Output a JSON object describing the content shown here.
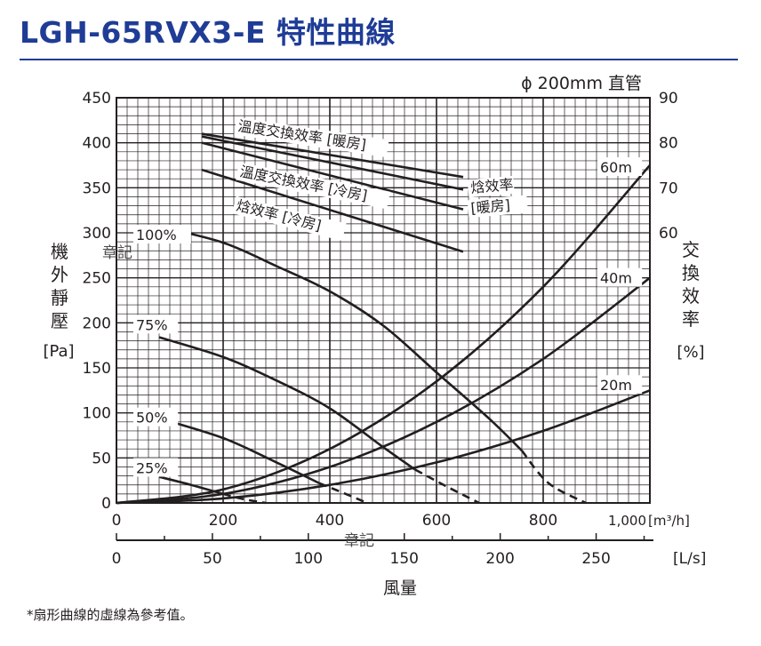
{
  "page": {
    "title": "LGH-65RVX3-E 特性曲線",
    "footnote": "*扇形曲線的虛線為參考值。"
  },
  "chart_data": {
    "type": "line",
    "duct_label": "ϕ 200mm 直管",
    "y_left": {
      "label_chars": [
        "機",
        "外",
        "靜",
        "壓"
      ],
      "unit": "[Pa]",
      "range": [
        0,
        450
      ],
      "ticks": [
        "0",
        "50",
        "100",
        "150",
        "200",
        "250",
        "300",
        "350",
        "400",
        "450"
      ]
    },
    "y_right": {
      "label_chars": [
        "交",
        "換",
        "效",
        "率"
      ],
      "unit": "[%]",
      "range": [
        0,
        90
      ],
      "ticks": [
        "60",
        "70",
        "80",
        "90"
      ]
    },
    "x_primary": {
      "unit": "[m³/h]",
      "range": [
        0,
        1000
      ],
      "ticks": [
        "0",
        "200",
        "400",
        "600",
        "800",
        "1,000"
      ]
    },
    "x_secondary": {
      "unit": "[L/s]",
      "range": [
        0,
        278
      ],
      "ticks": [
        "0",
        "50",
        "100",
        "150",
        "200",
        "250"
      ]
    },
    "x_title": "風量",
    "watermarks": [
      "章記",
      "章記"
    ],
    "grid": true,
    "fan_curves": [
      {
        "name": "100%",
        "solid": [
          [
            80,
            307
          ],
          [
            200,
            289
          ],
          [
            300,
            263
          ],
          [
            400,
            235
          ],
          [
            500,
            197
          ],
          [
            600,
            145
          ],
          [
            700,
            93
          ],
          [
            760,
            58
          ]
        ],
        "dashed": [
          [
            760,
            58
          ],
          [
            810,
            22
          ],
          [
            880,
            0
          ]
        ]
      },
      {
        "name": "75%",
        "solid": [
          [
            80,
            184
          ],
          [
            200,
            162
          ],
          [
            300,
            136
          ],
          [
            400,
            105
          ],
          [
            500,
            62
          ],
          [
            560,
            37
          ]
        ],
        "dashed": [
          [
            560,
            37
          ],
          [
            620,
            18
          ],
          [
            680,
            0
          ]
        ]
      },
      {
        "name": "50%",
        "solid": [
          [
            80,
            94
          ],
          [
            200,
            72
          ],
          [
            300,
            45
          ],
          [
            380,
            22
          ]
        ],
        "dashed": [
          [
            380,
            22
          ],
          [
            430,
            10
          ],
          [
            470,
            0
          ]
        ]
      },
      {
        "name": "25%",
        "solid": [
          [
            80,
            29
          ],
          [
            140,
            20
          ],
          [
            200,
            10
          ]
        ],
        "dashed": [
          [
            200,
            10
          ],
          [
            240,
            4
          ],
          [
            280,
            0
          ]
        ]
      }
    ],
    "duct_curves": [
      {
        "name": "60m",
        "points": [
          [
            0,
            0
          ],
          [
            200,
            15
          ],
          [
            400,
            60
          ],
          [
            600,
            135
          ],
          [
            800,
            240
          ],
          [
            1000,
            375
          ]
        ]
      },
      {
        "name": "40m",
        "points": [
          [
            0,
            0
          ],
          [
            200,
            10
          ],
          [
            400,
            40
          ],
          [
            600,
            90
          ],
          [
            800,
            160
          ],
          [
            1000,
            250
          ]
        ]
      },
      {
        "name": "20m",
        "points": [
          [
            0,
            0
          ],
          [
            200,
            5
          ],
          [
            400,
            20
          ],
          [
            600,
            45
          ],
          [
            800,
            80
          ],
          [
            1000,
            125
          ]
        ]
      }
    ],
    "efficiency_curves": [
      {
        "name": "溫度交換效率 [暖房]",
        "points": [
          [
            160,
            82
          ],
          [
            650,
            72.4
          ]
        ]
      },
      {
        "name": "焓效率 [暖房]",
        "points": [
          [
            160,
            81.4
          ],
          [
            650,
            69.6
          ]
        ]
      },
      {
        "name": "溫度交換效率 [冷房]",
        "points": [
          [
            160,
            80
          ],
          [
            650,
            65.2
          ]
        ]
      },
      {
        "name": "焓效率 [冷房]",
        "points": [
          [
            160,
            74
          ],
          [
            650,
            55.8
          ]
        ]
      }
    ],
    "label_texts": {
      "temp_heat": "溫度交換效率 [暖房]",
      "temp_cool": "溫度交換效率 [冷房]",
      "enth_cool": "焓效率 [冷房]",
      "enth_heat_1": "焓效率",
      "enth_heat_2": "[暖房]"
    }
  }
}
